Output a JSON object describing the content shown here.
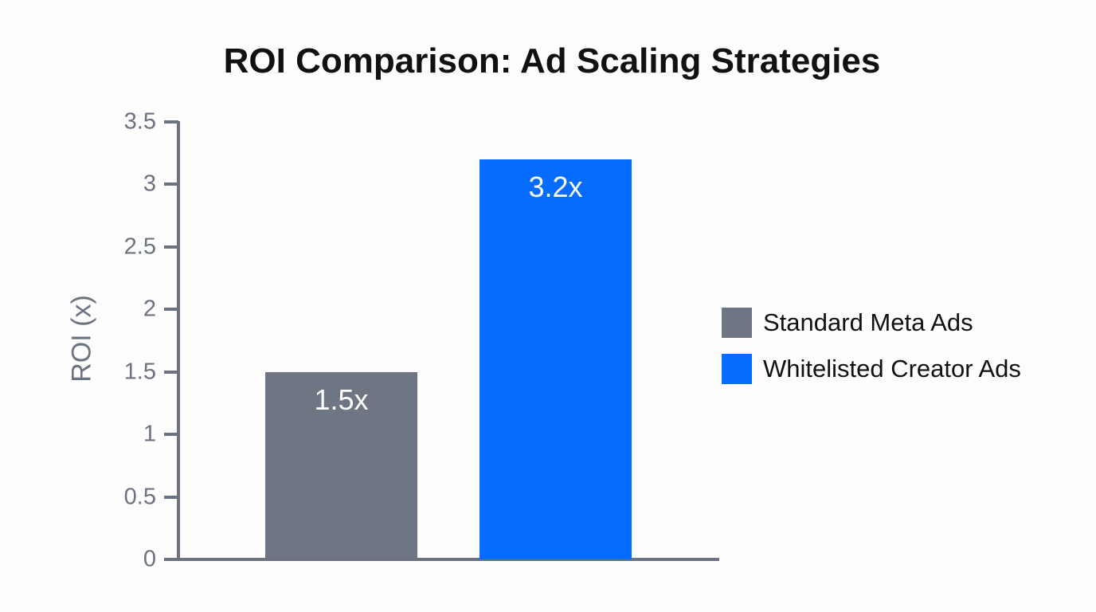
{
  "chart_data": {
    "type": "bar",
    "title": "ROI Comparison: Ad Scaling Strategies",
    "xlabel": "",
    "ylabel": "ROI (x)",
    "ylim": [
      0,
      3.5
    ],
    "yticks": [
      "0",
      "0.5",
      "1",
      "1.5",
      "2",
      "2.5",
      "3",
      "3.5"
    ],
    "grid": false,
    "legend_position": "right",
    "categories": [
      "Standard Meta Ads",
      "Whitelisted Creator Ads"
    ],
    "values": [
      1.5,
      3.2
    ],
    "data_labels": [
      "1.5x",
      "3.2x"
    ],
    "colors": [
      "#6e7583",
      "#056cfd"
    ]
  },
  "title": "ROI Comparison: Ad Scaling Strategies",
  "y_axis": {
    "label": "ROI (x)",
    "ticks": [
      "0",
      "0.5",
      "1",
      "1.5",
      "2",
      "2.5",
      "3",
      "3.5"
    ]
  },
  "bars": [
    {
      "label": "1.5x",
      "value": 1.5,
      "color": "#6e7583"
    },
    {
      "label": "3.2x",
      "value": 3.2,
      "color": "#056cfd"
    }
  ],
  "legend": [
    {
      "label": "Standard Meta Ads",
      "color": "#6e7583"
    },
    {
      "label": "Whitelisted Creator Ads",
      "color": "#056cfd"
    }
  ]
}
